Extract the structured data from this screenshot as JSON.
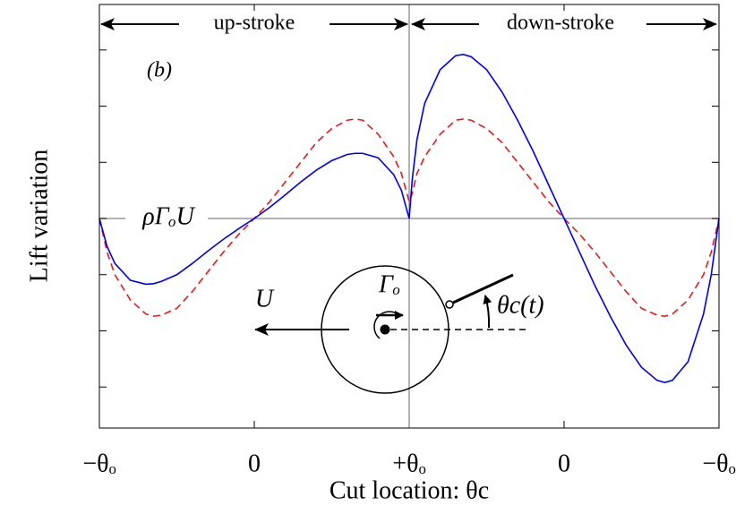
{
  "chart_data": {
    "type": "line",
    "y_label": "Lift variation",
    "x_label": "Cut location: θc",
    "annotations": {
      "panel": "(b)",
      "up": "up-stroke",
      "down": "down-stroke",
      "baseline": "ρΓₒU",
      "velocity": "U",
      "circulation": "Γₒ",
      "angle": "θc(t)"
    },
    "x": [
      0,
      0.05,
      0.1,
      0.2,
      0.3,
      0.35,
      0.4,
      0.5,
      0.6,
      0.7,
      0.8,
      0.9,
      1,
      1.1,
      1.2,
      1.3,
      1.4,
      1.5,
      1.6,
      1.65,
      1.7,
      1.8,
      1.9,
      1.95,
      2,
      2.02,
      2.05,
      2.1,
      2.2,
      2.3,
      2.35,
      2.4,
      2.5,
      2.6,
      2.7,
      2.8,
      2.9,
      3,
      3.1,
      3.2,
      3.3,
      3.4,
      3.5,
      3.6,
      3.65,
      3.7,
      3.8,
      3.9,
      3.95,
      4
    ],
    "series": [
      {
        "color": "#e41a1c",
        "dash": true,
        "values": [
          0,
          -0.6,
          -1.0,
          -1.45,
          -1.7,
          -1.74,
          -1.72,
          -1.6,
          -1.3,
          -0.95,
          -0.6,
          -0.28,
          0,
          0.3,
          0.65,
          1.0,
          1.35,
          1.6,
          1.75,
          1.77,
          1.75,
          1.5,
          1.1,
          0.8,
          0.3,
          0.45,
          0.8,
          1.1,
          1.5,
          1.75,
          1.77,
          1.75,
          1.6,
          1.35,
          1.0,
          0.65,
          0.3,
          0,
          -0.28,
          -0.6,
          -0.95,
          -1.3,
          -1.6,
          -1.72,
          -1.74,
          -1.7,
          -1.45,
          -1.0,
          -0.6,
          0
        ]
      },
      {
        "color": "#0000ee",
        "dash": false,
        "values": [
          0,
          -0.5,
          -0.8,
          -1.1,
          -1.17,
          -1.16,
          -1.12,
          -1.0,
          -0.8,
          -0.58,
          -0.37,
          -0.18,
          0,
          0.2,
          0.42,
          0.65,
          0.86,
          1.03,
          1.14,
          1.16,
          1.16,
          1.08,
          0.78,
          0.5,
          0,
          0.7,
          1.4,
          2.05,
          2.65,
          2.9,
          2.92,
          2.88,
          2.65,
          2.25,
          1.75,
          1.2,
          0.6,
          0,
          -0.6,
          -1.2,
          -1.75,
          -2.25,
          -2.65,
          -2.88,
          -2.92,
          -2.88,
          -2.55,
          -1.7,
          -1.0,
          0
        ]
      }
    ],
    "xlim": [
      0,
      4
    ],
    "xticks": [
      {
        "value": 0,
        "label": "−θₒ"
      },
      {
        "value": 1,
        "label": "0"
      },
      {
        "value": 2,
        "label": "+θₒ"
      },
      {
        "value": 3,
        "label": "0"
      },
      {
        "value": 4,
        "label": "−θₒ"
      }
    ],
    "ylim": [
      -3.73,
      3.81
    ],
    "yticks": [
      -3,
      -2,
      -1,
      0,
      1,
      2,
      3
    ]
  }
}
